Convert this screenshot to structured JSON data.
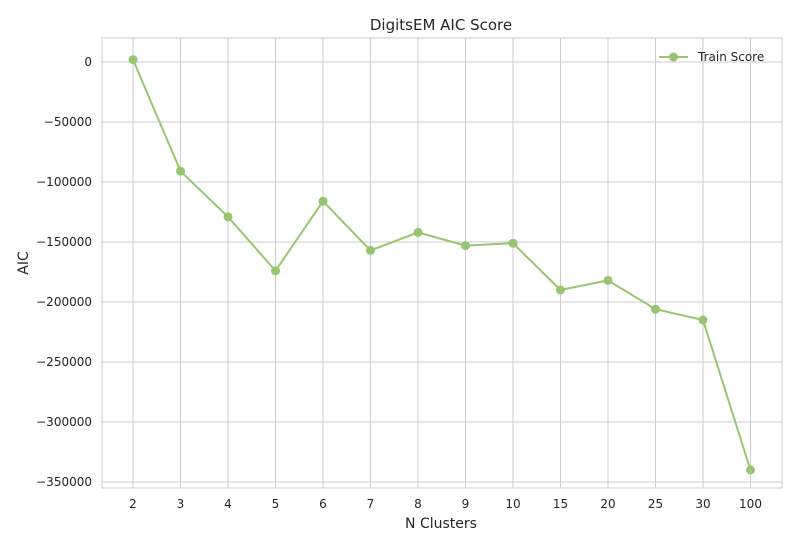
{
  "chart_data": {
    "type": "line",
    "title": "DigitsEM AIC Score",
    "xlabel": "N Clusters",
    "ylabel": "AIC",
    "categories": [
      "2",
      "3",
      "4",
      "5",
      "6",
      "7",
      "8",
      "9",
      "10",
      "15",
      "20",
      "25",
      "30",
      "100"
    ],
    "series": [
      {
        "name": "Train Score",
        "color": "#98c56f",
        "marker": "circle",
        "values": [
          2000,
          -91000,
          -129000,
          -174000,
          -116000,
          -157000,
          -142000,
          -153000,
          -151000,
          -190000,
          -182000,
          -206000,
          -215000,
          -340000
        ]
      }
    ],
    "yticks": [
      0,
      -50000,
      -100000,
      -150000,
      -200000,
      -250000,
      -300000,
      -350000
    ],
    "ytick_labels": [
      "0",
      "−50000",
      "−100000",
      "−150000",
      "−200000",
      "−250000",
      "−300000",
      "−350000"
    ],
    "ylim": [
      -355000,
      20000
    ],
    "grid": true,
    "legend_position": "top-right"
  }
}
